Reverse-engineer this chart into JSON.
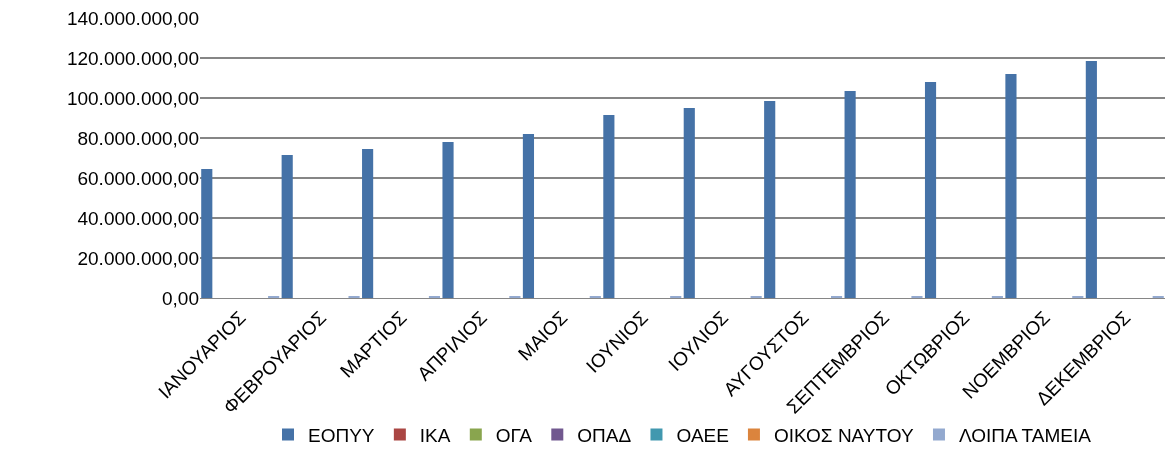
{
  "chart_data": {
    "type": "bar",
    "categories": [
      "ΙΑΝΟΥΑΡΙΟΣ",
      "ΦΕΒΡΟΥΑΡΙΟΣ",
      "ΜΑΡΤΙΟΣ",
      "ΑΠΡΙΛΙΟΣ",
      "ΜΑΙΟΣ",
      "ΙΟΥΝΙΟΣ",
      "ΙΟΥΛΙΟΣ",
      "ΑΥΓΟΥΣΤΟΣ",
      "ΣΕΠΤΕΜΒΡΙΟΣ",
      "ΟΚΤΩΒΡΙΟΣ",
      "ΝΟΕΜΒΡΙΟΣ",
      "ΔΕΚΕΜΒΡΙΟΣ"
    ],
    "series": [
      {
        "name": "ΕΟΠΥΥ",
        "color": "#4572a7",
        "values": [
          64500000,
          71500000,
          74500000,
          78000000,
          82000000,
          91500000,
          95000000,
          98500000,
          103500000,
          108000000,
          112000000,
          118500000
        ]
      },
      {
        "name": "ΙΚΑ",
        "color": "#aa4643",
        "values": [
          0,
          0,
          0,
          0,
          0,
          0,
          0,
          0,
          0,
          0,
          0,
          0
        ]
      },
      {
        "name": "ΟΓΑ",
        "color": "#89a54e",
        "values": [
          0,
          0,
          0,
          0,
          0,
          0,
          0,
          0,
          0,
          0,
          0,
          0
        ]
      },
      {
        "name": "ΟΠΑΔ",
        "color": "#71588f",
        "values": [
          0,
          0,
          0,
          0,
          0,
          0,
          0,
          0,
          0,
          0,
          0,
          0
        ]
      },
      {
        "name": "ΟΑΕΕ",
        "color": "#4198af",
        "values": [
          0,
          0,
          0,
          0,
          0,
          0,
          0,
          0,
          0,
          0,
          0,
          0
        ]
      },
      {
        "name": "ΟΙΚΟΣ ΝΑΥΤΟΥ",
        "color": "#db843d",
        "values": [
          0,
          0,
          0,
          0,
          0,
          0,
          0,
          0,
          0,
          0,
          0,
          0
        ]
      },
      {
        "name": "ΛΟΙΠΑ ΤΑΜΕΙΑ",
        "color": "#93a9cf",
        "values": [
          1000000,
          1000000,
          1000000,
          1000000,
          1000000,
          1000000,
          1000000,
          1000000,
          1000000,
          1000000,
          1000000,
          1000000
        ]
      }
    ],
    "ylim": [
      0,
      140000000
    ],
    "yticks": [
      {
        "value": 0,
        "label": "0,00"
      },
      {
        "value": 20000000,
        "label": "20.000.000,00"
      },
      {
        "value": 40000000,
        "label": "40.000.000,00"
      },
      {
        "value": 60000000,
        "label": "60.000.000,00"
      },
      {
        "value": 80000000,
        "label": "80.000.000,00"
      },
      {
        "value": 100000000,
        "label": "100.000.000,00"
      },
      {
        "value": 120000000,
        "label": "120.000.000,00"
      },
      {
        "value": 140000000,
        "label": "140.000.000,00"
      }
    ],
    "grid": "y",
    "legend": "bottom"
  }
}
